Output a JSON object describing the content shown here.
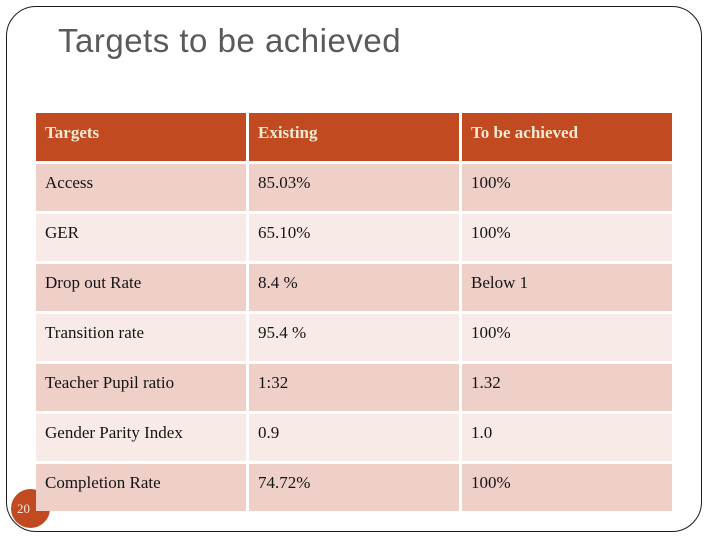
{
  "slide": {
    "title": "Targets to be achieved",
    "page_number": "20"
  },
  "table": {
    "headers": [
      "Targets",
      "Existing",
      "To be achieved"
    ],
    "rows": [
      [
        "Access",
        "85.03%",
        "100%"
      ],
      [
        "GER",
        "65.10%",
        "100%"
      ],
      [
        "Drop out Rate",
        "8.4 %",
        "Below 1"
      ],
      [
        "Transition rate",
        "95.4 %",
        "100%"
      ],
      [
        "Teacher Pupil ratio",
        "1:32",
        "1.32"
      ],
      [
        "Gender Parity Index",
        "0.9",
        "1.0"
      ],
      [
        "Completion Rate",
        "74.72%",
        "100%"
      ]
    ]
  },
  "colors": {
    "accent_orange": "#c24a20",
    "header_text": "#f2e9d3",
    "band_dark": "#efd0c9",
    "band_light": "#f8ebe7",
    "title_gray": "#5a5a5a",
    "frame_line": "#1c1c1c"
  }
}
